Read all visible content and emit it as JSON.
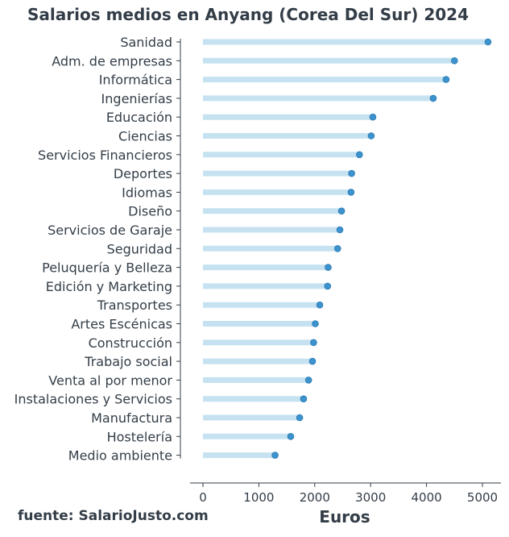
{
  "chart_data": {
    "type": "lollipop",
    "title": "Salarios medios en Anyang (Corea Del Sur) 2024",
    "xlabel": "Euros",
    "ylabel": "",
    "xlim": [
      0,
      5300
    ],
    "xticks": [
      0,
      1000,
      2000,
      3000,
      4000,
      5000
    ],
    "grid": false,
    "categories": [
      "Sanidad",
      "Adm. de empresas",
      "Informática",
      "Ingenierías",
      "Educación",
      "Ciencias",
      "Servicios Financieros",
      "Deportes",
      "Idiomas",
      "Diseño",
      "Servicios de Garaje",
      "Seguridad",
      "Peluquería y Belleza",
      "Edición y Marketing",
      "Transportes",
      "Artes Escénicas",
      "Construcción",
      "Trabajo social",
      "Venta al por menor",
      "Instalaciones y Servicios",
      "Manufactura",
      "Hostelería",
      "Medio ambiente"
    ],
    "values": [
      5100,
      4500,
      4350,
      4120,
      3040,
      3010,
      2800,
      2660,
      2650,
      2480,
      2450,
      2410,
      2240,
      2230,
      2090,
      2010,
      1980,
      1960,
      1890,
      1800,
      1730,
      1570,
      1290
    ],
    "colors": {
      "stem": "#c6e2f1",
      "marker": "#3d93cd",
      "text": "#333d47"
    }
  },
  "source": "fuente: SalarioJusto.com"
}
